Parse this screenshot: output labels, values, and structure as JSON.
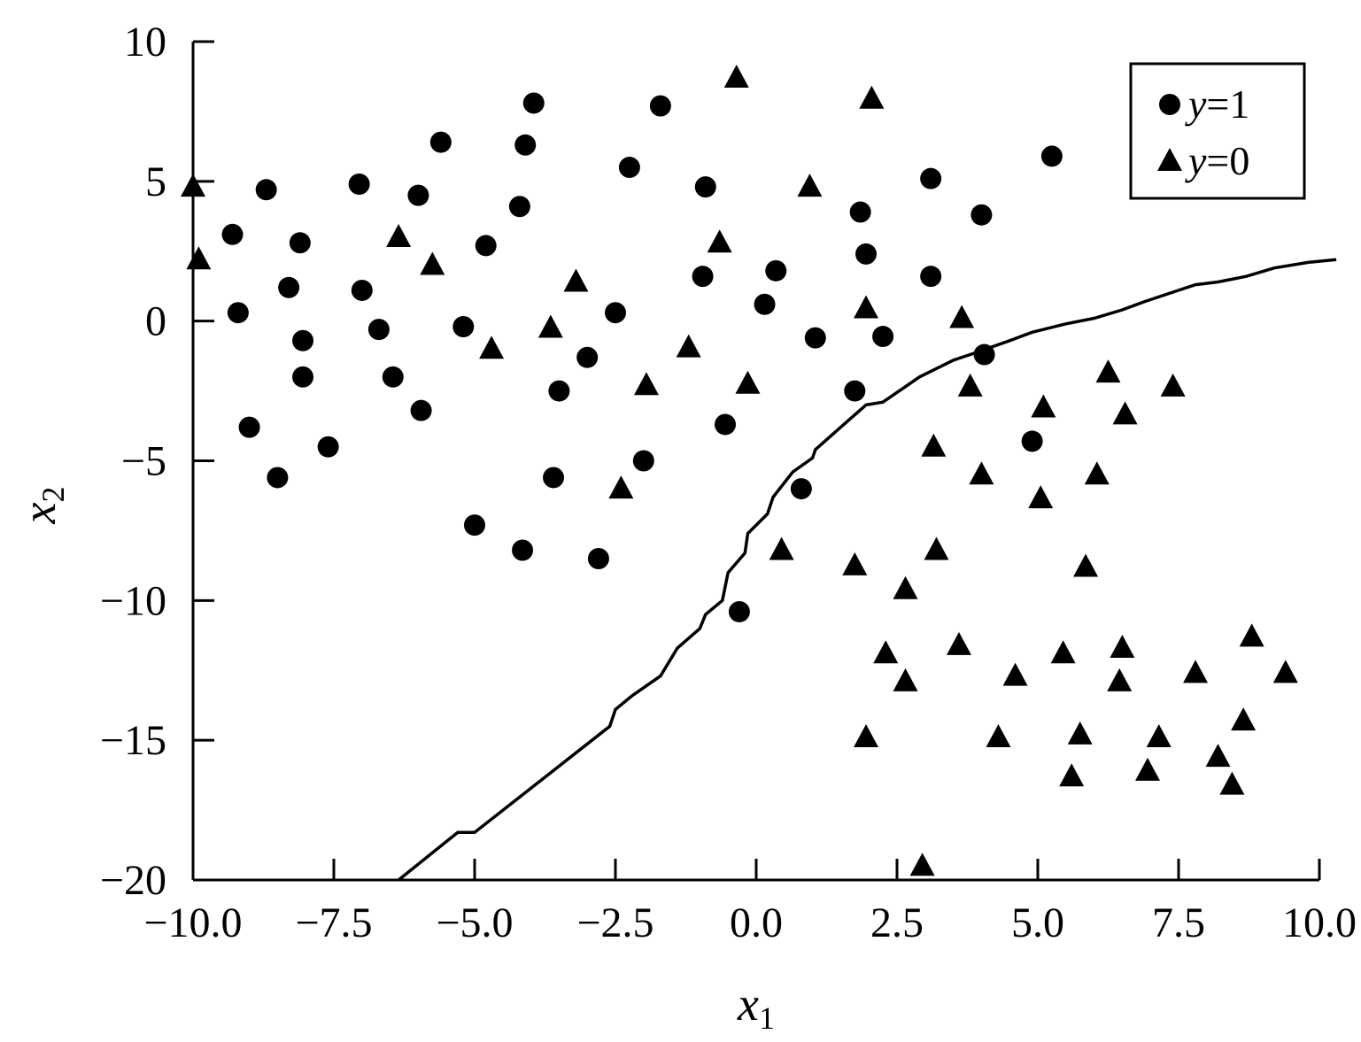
{
  "chart_data": {
    "type": "scatter",
    "xlabel": {
      "var": "x",
      "sub": "1"
    },
    "ylabel": {
      "var": "x",
      "sub": "2"
    },
    "xlim": [
      -10,
      10
    ],
    "ylim": [
      -20,
      10
    ],
    "x_ticks": [
      -10,
      -7.5,
      -5,
      -2.5,
      0,
      2.5,
      5,
      7.5,
      10
    ],
    "x_tick_labels": [
      "−10.0",
      "−7.5",
      "−5.0",
      "−2.5",
      "0.0",
      "2.5",
      "5.0",
      "7.5",
      "10.0"
    ],
    "y_ticks": [
      10,
      5,
      0,
      -5,
      -10,
      -15,
      -20
    ],
    "y_tick_labels": [
      "10",
      "5",
      "0",
      "−5",
      "−10",
      "−15",
      "−20"
    ],
    "grid": false,
    "legend_position": "top-right",
    "legend": [
      {
        "marker": "circle",
        "var": "y",
        "value": "=1"
      },
      {
        "marker": "triangle",
        "var": "y",
        "value": "=0"
      }
    ],
    "series": [
      {
        "label": "y=1",
        "marker": "circle",
        "points": [
          [
            -9.3,
            3.1
          ],
          [
            -9.2,
            0.3
          ],
          [
            -9.0,
            -3.8
          ],
          [
            -8.7,
            4.7
          ],
          [
            -8.5,
            -5.6
          ],
          [
            -8.3,
            1.2
          ],
          [
            -8.1,
            2.8
          ],
          [
            -8.05,
            -0.7
          ],
          [
            -8.05,
            -2.0
          ],
          [
            -7.6,
            -4.5
          ],
          [
            -7.05,
            4.9
          ],
          [
            -7.0,
            1.1
          ],
          [
            -6.7,
            -0.3
          ],
          [
            -6.45,
            -2.0
          ],
          [
            -6.0,
            4.5
          ],
          [
            -5.95,
            -3.2
          ],
          [
            -5.6,
            6.4
          ],
          [
            -5.2,
            -0.2
          ],
          [
            -5.0,
            -7.3
          ],
          [
            -4.8,
            2.7
          ],
          [
            -4.2,
            4.1
          ],
          [
            -4.15,
            -8.2
          ],
          [
            -4.1,
            6.3
          ],
          [
            -3.95,
            7.8
          ],
          [
            -3.6,
            -5.6
          ],
          [
            -3.5,
            -2.5
          ],
          [
            -3.0,
            -1.3
          ],
          [
            -2.8,
            -8.5
          ],
          [
            -2.5,
            0.3
          ],
          [
            -2.25,
            5.5
          ],
          [
            -2.0,
            -5.0
          ],
          [
            -1.7,
            7.7
          ],
          [
            -0.95,
            1.6
          ],
          [
            -0.9,
            4.8
          ],
          [
            -0.55,
            -3.7
          ],
          [
            -0.3,
            -10.4
          ],
          [
            0.15,
            0.6
          ],
          [
            0.35,
            1.8
          ],
          [
            0.8,
            -6.0
          ],
          [
            1.05,
            -0.6
          ],
          [
            1.75,
            -2.5
          ],
          [
            1.85,
            3.9
          ],
          [
            1.95,
            2.4
          ],
          [
            2.25,
            -0.55
          ],
          [
            3.1,
            5.1
          ],
          [
            3.1,
            1.6
          ],
          [
            4.0,
            3.8
          ],
          [
            4.05,
            -1.2
          ],
          [
            4.9,
            -4.3
          ],
          [
            5.25,
            5.9
          ]
        ]
      },
      {
        "label": "y=0",
        "marker": "triangle",
        "points": [
          [
            -10.0,
            4.8
          ],
          [
            -9.9,
            2.2
          ],
          [
            -6.35,
            3.0
          ],
          [
            -5.75,
            2.0
          ],
          [
            -4.7,
            -1.0
          ],
          [
            -3.65,
            -0.25
          ],
          [
            -3.2,
            1.4
          ],
          [
            -2.4,
            -6.0
          ],
          [
            -1.95,
            -2.3
          ],
          [
            -1.2,
            -0.95
          ],
          [
            -0.65,
            2.8
          ],
          [
            -0.35,
            8.7
          ],
          [
            -0.15,
            -2.25
          ],
          [
            0.45,
            -8.2
          ],
          [
            0.95,
            4.8
          ],
          [
            1.75,
            -8.75
          ],
          [
            1.95,
            -14.9
          ],
          [
            1.95,
            0.45
          ],
          [
            2.05,
            7.95
          ],
          [
            2.3,
            -11.9
          ],
          [
            2.65,
            -9.6
          ],
          [
            2.65,
            -12.9
          ],
          [
            2.95,
            -19.5
          ],
          [
            3.15,
            -4.5
          ],
          [
            3.2,
            -8.2
          ],
          [
            3.6,
            -11.6
          ],
          [
            3.65,
            0.1
          ],
          [
            3.8,
            -2.35
          ],
          [
            4.0,
            -5.5
          ],
          [
            4.3,
            -14.9
          ],
          [
            4.6,
            -12.7
          ],
          [
            5.05,
            -6.35
          ],
          [
            5.1,
            -3.1
          ],
          [
            5.45,
            -11.9
          ],
          [
            5.6,
            -16.3
          ],
          [
            5.75,
            -14.8
          ],
          [
            5.85,
            -8.8
          ],
          [
            6.05,
            -5.5
          ],
          [
            6.25,
            -1.85
          ],
          [
            6.45,
            -12.9
          ],
          [
            6.5,
            -11.7
          ],
          [
            6.55,
            -3.35
          ],
          [
            6.95,
            -16.1
          ],
          [
            7.15,
            -14.9
          ],
          [
            7.4,
            -2.35
          ],
          [
            7.8,
            -12.6
          ],
          [
            8.2,
            -15.6
          ],
          [
            8.45,
            -16.6
          ],
          [
            8.65,
            -14.3
          ],
          [
            8.8,
            -11.3
          ],
          [
            9.4,
            -12.6
          ]
        ]
      }
    ],
    "boundary": {
      "label": "decision boundary",
      "points": [
        [
          -6.35,
          -20.0
        ],
        [
          -5.3,
          -18.3
        ],
        [
          -5.0,
          -18.3
        ],
        [
          -2.6,
          -14.5
        ],
        [
          -2.5,
          -13.9
        ],
        [
          -2.2,
          -13.4
        ],
        [
          -1.7,
          -12.7
        ],
        [
          -1.4,
          -11.7
        ],
        [
          -1.0,
          -11.0
        ],
        [
          -0.9,
          -10.5
        ],
        [
          -0.6,
          -10.0
        ],
        [
          -0.5,
          -9.0
        ],
        [
          -0.2,
          -8.3
        ],
        [
          -0.15,
          -7.6
        ],
        [
          0.2,
          -6.9
        ],
        [
          0.3,
          -6.3
        ],
        [
          0.65,
          -5.4
        ],
        [
          1.0,
          -4.9
        ],
        [
          1.05,
          -4.6
        ],
        [
          1.5,
          -3.8
        ],
        [
          1.95,
          -3.0
        ],
        [
          2.25,
          -2.9
        ],
        [
          2.9,
          -2.0
        ],
        [
          3.3,
          -1.6
        ],
        [
          3.5,
          -1.4
        ],
        [
          3.8,
          -1.2
        ],
        [
          4.5,
          -0.7
        ],
        [
          4.9,
          -0.4
        ],
        [
          5.5,
          -0.1
        ],
        [
          6.0,
          0.1
        ],
        [
          6.5,
          0.4
        ],
        [
          6.9,
          0.7
        ],
        [
          7.5,
          1.1
        ],
        [
          7.8,
          1.3
        ],
        [
          8.2,
          1.4
        ],
        [
          8.7,
          1.6
        ],
        [
          9.2,
          1.9
        ],
        [
          9.8,
          2.1
        ],
        [
          10.3,
          2.2
        ]
      ]
    }
  }
}
